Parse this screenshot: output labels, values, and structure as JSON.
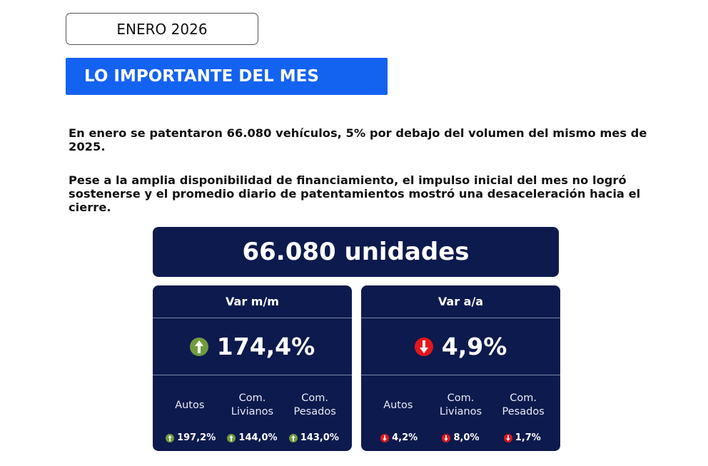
{
  "header": {
    "period": "ENERO 2026"
  },
  "banner": {
    "title": "LO IMPORTANTE DEL MES"
  },
  "paragraphs": [
    "En enero se patentaron 66.080 vehículos, 5% por debajo del volumen del mismo mes de 2025.",
    "Pese a la amplia disponibilidad de financiamiento, el impulso inicial del mes no logró sostenerse y el promedio diario de patentamientos mostró una desaceleración hacia el cierre."
  ],
  "total": "66.080 unidades",
  "cards": [
    {
      "title": "Var m/m",
      "value": "174,4%",
      "items": [
        {
          "label": "Autos",
          "value": "197,2%"
        },
        {
          "label": "Com. Livianos",
          "value": "144,0%"
        },
        {
          "label": "Com. Pesados",
          "value": "143,0%"
        }
      ]
    },
    {
      "title": "Var a/a",
      "value": "4,9%",
      "items": [
        {
          "label": "Autos",
          "value": "4,2%"
        },
        {
          "label": "Com. Livianos",
          "value": "8,0%"
        },
        {
          "label": "Com. Pesados",
          "value": "1,7%"
        }
      ]
    }
  ]
}
